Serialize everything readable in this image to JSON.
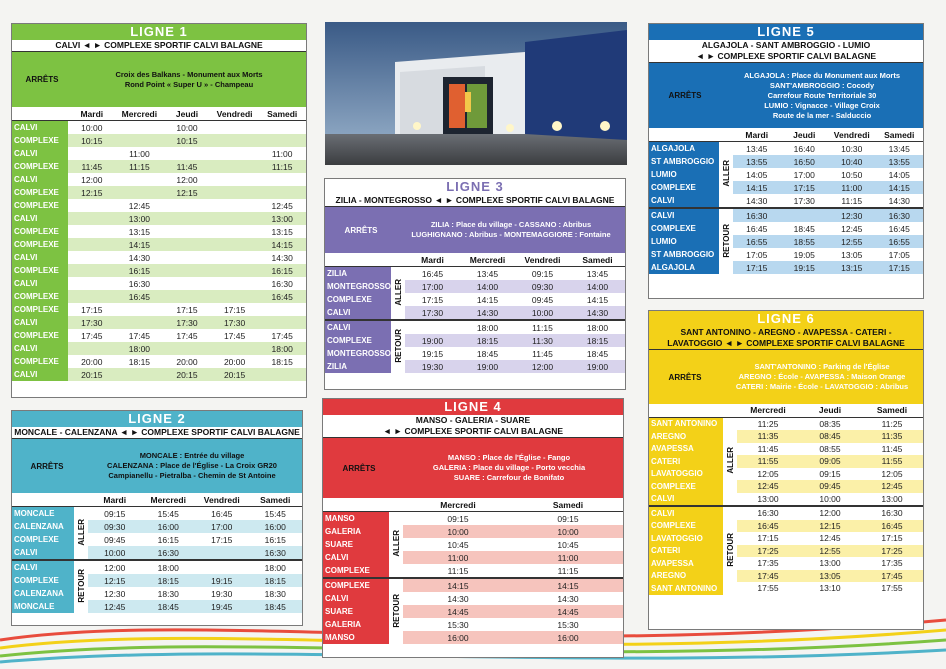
{
  "l1": {
    "title": "LIGNE 1",
    "route": "CALVI ◄ ► COMPLEXE SPORTIF CALVI BALAGNE",
    "arrets": "ARRÊTS",
    "stops": [
      "Croix des Balkans - Monument aux Morts",
      "Rond Point « Super U » - Champeau"
    ],
    "days": [
      "Mardi",
      "Mercredi",
      "Jeudi",
      "Vendredi",
      "Samedi"
    ],
    "rows": [
      [
        "CALVI",
        "10:00",
        "",
        "10:00",
        "",
        ""
      ],
      [
        "COMPLEXE",
        "10:15",
        "",
        "10:15",
        "",
        ""
      ],
      [
        "CALVI",
        "",
        "11:00",
        "",
        "",
        "11:00"
      ],
      [
        "COMPLEXE",
        "11:45",
        "11:15",
        "11:45",
        "",
        "11:15"
      ],
      [
        "CALVI",
        "12:00",
        "",
        "12:00",
        "",
        ""
      ],
      [
        "COMPLEXE",
        "12:15",
        "",
        "12:15",
        "",
        ""
      ],
      [
        "COMPLEXE",
        "",
        "12:45",
        "",
        "",
        "12:45"
      ],
      [
        "CALVI",
        "",
        "13:00",
        "",
        "",
        "13:00"
      ],
      [
        "COMPLEXE",
        "",
        "13:15",
        "",
        "",
        "13:15"
      ],
      [
        "COMPLEXE",
        "",
        "14:15",
        "",
        "",
        "14:15"
      ],
      [
        "CALVI",
        "",
        "14:30",
        "",
        "",
        "14:30"
      ],
      [
        "COMPLEXE",
        "",
        "16:15",
        "",
        "",
        "16:15"
      ],
      [
        "CALVI",
        "",
        "16:30",
        "",
        "",
        "16:30"
      ],
      [
        "COMPLEXE",
        "",
        "16:45",
        "",
        "",
        "16:45"
      ],
      [
        "COMPLEXE",
        "17:15",
        "",
        "17:15",
        "17:15",
        ""
      ],
      [
        "CALVI",
        "17:30",
        "",
        "17:30",
        "17:30",
        ""
      ],
      [
        "COMPLEXE",
        "17:45",
        "17:45",
        "17:45",
        "17:45",
        "17:45"
      ],
      [
        "CALVI",
        "",
        "18:00",
        "",
        "",
        "18:00"
      ],
      [
        "COMPLEXE",
        "20:00",
        "18:15",
        "20:00",
        "20:00",
        "18:15"
      ],
      [
        "CALVI",
        "20:15",
        "",
        "20:15",
        "20:15",
        ""
      ]
    ]
  },
  "l2": {
    "title": "LIGNE 2",
    "route": "MONCALE - CALENZANA ◄ ► COMPLEXE SPORTIF CALVI BALAGNE",
    "arrets": "ARRÊTS",
    "stops": [
      "MONCALE : Entrée du village",
      "CALENZANA : Place de l'Église - La Croix GR20",
      "Campianellu - Pietralba - Chemin de St Antoine"
    ],
    "days": [
      "Mardi",
      "Mercredi",
      "Vendredi",
      "Samedi"
    ],
    "aller": "ALLER",
    "retour": "RETOUR",
    "aller_rows": [
      [
        "MONCALE",
        "09:15",
        "15:45",
        "16:45",
        "15:45"
      ],
      [
        "CALENZANA",
        "09:30",
        "16:00",
        "17:00",
        "16:00"
      ],
      [
        "COMPLEXE",
        "09:45",
        "16:15",
        "17:15",
        "16:15"
      ],
      [
        "CALVI",
        "10:00",
        "16:30",
        "",
        "16:30"
      ]
    ],
    "retour_rows": [
      [
        "CALVI",
        "12:00",
        "18:00",
        "",
        "18:00"
      ],
      [
        "COMPLEXE",
        "12:15",
        "18:15",
        "19:15",
        "18:15"
      ],
      [
        "CALENZANA",
        "12:30",
        "18:30",
        "19:30",
        "18:30"
      ],
      [
        "MONCALE",
        "12:45",
        "18:45",
        "19:45",
        "18:45"
      ]
    ]
  },
  "l3": {
    "title": "LIGNE 3",
    "route": "ZILIA - MONTEGROSSO ◄ ► COMPLEXE SPORTIF CALVI BALAGNE",
    "arrets": "ARRÊTS",
    "stops": [
      "ZILIA : Place du village - CASSANO : Abribus",
      "LUGHIGNANO : Abribus - MONTEMAGGIORE : Fontaine"
    ],
    "days": [
      "Mardi",
      "Mercredi",
      "Vendredi",
      "Samedi"
    ],
    "aller": "ALLER",
    "retour": "RETOUR",
    "aller_rows": [
      [
        "ZILIA",
        "16:45",
        "13:45",
        "09:15",
        "13:45"
      ],
      [
        "MONTEGROSSO",
        "17:00",
        "14:00",
        "09:30",
        "14:00"
      ],
      [
        "COMPLEXE",
        "17:15",
        "14:15",
        "09:45",
        "14:15"
      ],
      [
        "CALVI",
        "17:30",
        "14:30",
        "10:00",
        "14:30"
      ]
    ],
    "retour_rows": [
      [
        "CALVI",
        "",
        "18:00",
        "11:15",
        "18:00"
      ],
      [
        "COMPLEXE",
        "19:00",
        "18:15",
        "11:30",
        "18:15"
      ],
      [
        "MONTEGROSSO",
        "19:15",
        "18:45",
        "11:45",
        "18:45"
      ],
      [
        "ZILIA",
        "19:30",
        "19:00",
        "12:00",
        "19:00"
      ]
    ]
  },
  "l4": {
    "title": "LIGNE 4",
    "route1": "MANSO - GALERIA - SUARE",
    "route2": "◄ ► COMPLEXE SPORTIF CALVI BALAGNE",
    "arrets": "ARRÊTS",
    "stops": [
      "MANSO : Place de l'Église - Fango",
      "GALERIA : Place du village - Porto vecchia",
      "SUARE : Carrefour de Bonifato"
    ],
    "days": [
      "Mercredi",
      "Samedi"
    ],
    "aller": "ALLER",
    "retour": "RETOUR",
    "aller_rows": [
      [
        "MANSO",
        "09:15",
        "09:15"
      ],
      [
        "GALERIA",
        "10:00",
        "10:00"
      ],
      [
        "SUARE",
        "10:45",
        "10:45"
      ],
      [
        "CALVI",
        "11:00",
        "11:00"
      ],
      [
        "COMPLEXE",
        "11:15",
        "11:15"
      ]
    ],
    "retour_rows": [
      [
        "COMPLEXE",
        "14:15",
        "14:15"
      ],
      [
        "CALVI",
        "14:30",
        "14:30"
      ],
      [
        "SUARE",
        "14:45",
        "14:45"
      ],
      [
        "GALERIA",
        "15:30",
        "15:30"
      ],
      [
        "MANSO",
        "16:00",
        "16:00"
      ]
    ]
  },
  "l5": {
    "title": "LIGNE 5",
    "route1": "ALGAJOLA - SANT AMBROGGIO - LUMIO",
    "route2": "◄ ► COMPLEXE SPORTIF CALVI BALAGNE",
    "arrets": "ARRÊTS",
    "stops": [
      "ALGAJOLA : Place du Monument aux Morts",
      "SANT'AMBROGGIO : Cocody",
      "Carrefour Route Territoriale 30",
      "LUMIO : Vignacce - Village Croix",
      "Route de la mer - Salduccio"
    ],
    "days": [
      "Mardi",
      "Jeudi",
      "Vendredi",
      "Samedi"
    ],
    "aller": "ALLER",
    "retour": "RETOUR",
    "aller_rows": [
      [
        "ALGAJOLA",
        "13:45",
        "16:40",
        "10:30",
        "13:45"
      ],
      [
        "ST AMBROGGIO",
        "13:55",
        "16:50",
        "10:40",
        "13:55"
      ],
      [
        "LUMIO",
        "14:05",
        "17:00",
        "10:50",
        "14:05"
      ],
      [
        "COMPLEXE",
        "14:15",
        "17:15",
        "11:00",
        "14:15"
      ],
      [
        "CALVI",
        "14:30",
        "17:30",
        "11:15",
        "14:30"
      ]
    ],
    "retour_rows": [
      [
        "CALVI",
        "16:30",
        "",
        "12:30",
        "16:30"
      ],
      [
        "COMPLEXE",
        "16:45",
        "18:45",
        "12:45",
        "16:45"
      ],
      [
        "LUMIO",
        "16:55",
        "18:55",
        "12:55",
        "16:55"
      ],
      [
        "ST AMBROGGIO",
        "17:05",
        "19:05",
        "13:05",
        "17:05"
      ],
      [
        "ALGAJOLA",
        "17:15",
        "19:15",
        "13:15",
        "17:15"
      ]
    ]
  },
  "l6": {
    "title": "LIGNE 6",
    "route1": "SANT ANTONINO - AREGNO - AVAPESSA - CATERI -",
    "route2": "LAVATOGGIO ◄ ► COMPLEXE SPORTIF CALVI BALAGNE",
    "arrets": "ARRÊTS",
    "stops": [
      "SANT'ANTONINO : Parking de l'Église",
      "AREGNO : École - AVAPESSA : Maison Orange",
      "CATERI : Mairie - École - LAVATOGGIO : Abribus"
    ],
    "days": [
      "Mercredi",
      "Jeudi",
      "Samedi"
    ],
    "aller": "ALLER",
    "retour": "RETOUR",
    "aller_rows": [
      [
        "SANT ANTONINO",
        "11:25",
        "08:35",
        "11:25"
      ],
      [
        "AREGNO",
        "11:35",
        "08:45",
        "11:35"
      ],
      [
        "AVAPESSA",
        "11:45",
        "08:55",
        "11:45"
      ],
      [
        "CATERI",
        "11:55",
        "09:05",
        "11:55"
      ],
      [
        "LAVATOGGIO",
        "12:05",
        "09:15",
        "12:05"
      ],
      [
        "COMPLEXE",
        "12:45",
        "09:45",
        "12:45"
      ],
      [
        "CALVI",
        "13:00",
        "10:00",
        "13:00"
      ]
    ],
    "retour_rows": [
      [
        "CALVI",
        "16:30",
        "12:00",
        "16:30"
      ],
      [
        "COMPLEXE",
        "16:45",
        "12:15",
        "16:45"
      ],
      [
        "LAVATOGGIO",
        "17:15",
        "12:45",
        "17:15"
      ],
      [
        "CATERI",
        "17:25",
        "12:55",
        "17:25"
      ],
      [
        "AVAPESSA",
        "17:35",
        "13:00",
        "17:35"
      ],
      [
        "AREGNO",
        "17:45",
        "13:05",
        "17:45"
      ],
      [
        "SANT ANTONINO",
        "17:55",
        "13:10",
        "17:55"
      ]
    ]
  },
  "colors": {
    "l1": "#7dc242",
    "l1_light": "#d9ecc0",
    "l2": "#4fb3c9",
    "l2_light": "#cde9f0",
    "l3": "#7b6fb2",
    "l3_light": "#d8d3ec",
    "l4": "#e03a3e",
    "l4_light": "#f6c4bd",
    "l5": "#1a6fb5",
    "l5_light": "#b8d8ef",
    "l6": "#f3d118",
    "l6_light": "#fbf0a8"
  }
}
